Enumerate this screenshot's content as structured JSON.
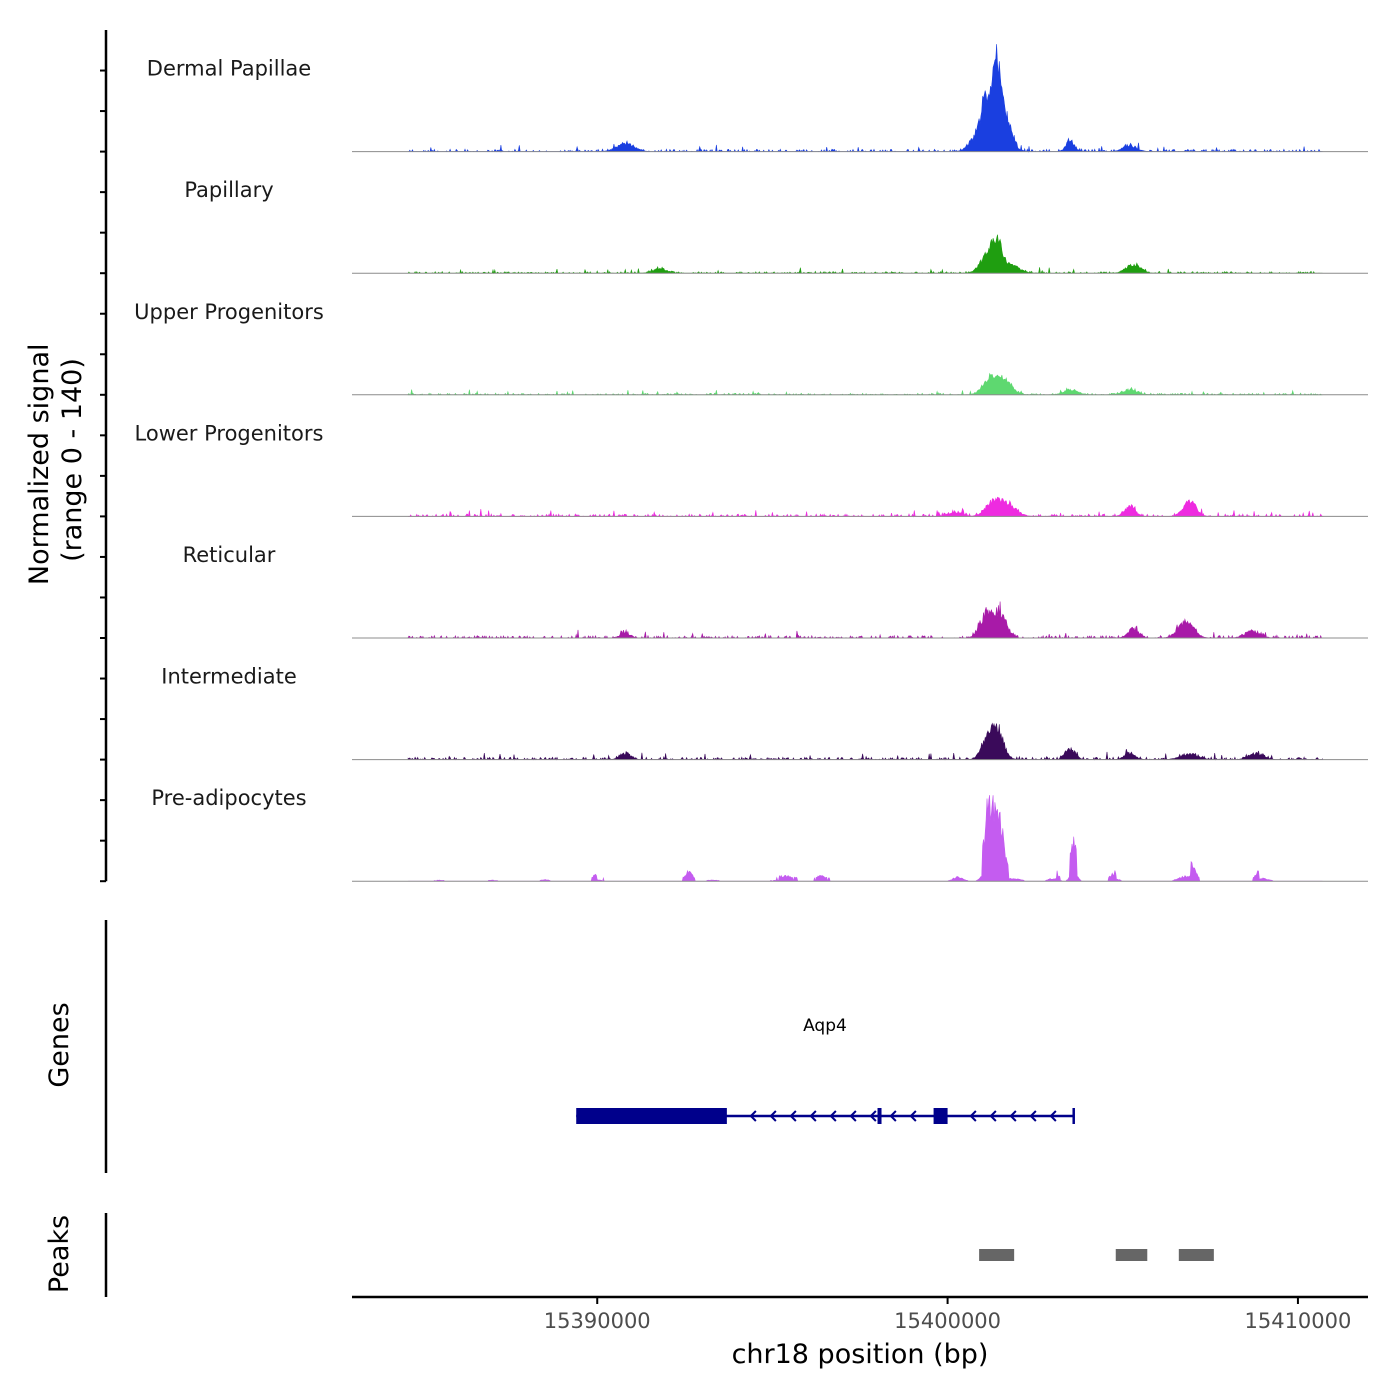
{
  "chart_data": {
    "type": "area",
    "chromosome": "chr18",
    "xlabel": "chr18 position (bp)",
    "ylabel_line1": "Normalized signal",
    "ylabel_line2": "(range 0 - 140)",
    "ylim": [
      0,
      140
    ],
    "xlim": [
      15383000,
      15412000
    ],
    "x_ticks": [
      {
        "value": 15390000,
        "label": "15390000"
      },
      {
        "value": 15400000,
        "label": "15400000"
      },
      {
        "value": 15410000,
        "label": "15410000"
      }
    ],
    "series": [
      {
        "name": "Dermal Papillae",
        "color": "#1a3fe0",
        "seed": 11,
        "noise_level": 3,
        "peaks": [
          {
            "x": 15390800,
            "height": 12,
            "width": 250
          },
          {
            "x": 15401100,
            "height": 75,
            "width": 150
          },
          {
            "x": 15401400,
            "height": 140,
            "width": 120
          },
          {
            "x": 15401700,
            "height": 52,
            "width": 150
          },
          {
            "x": 15400800,
            "height": 20,
            "width": 200
          },
          {
            "x": 15403500,
            "height": 17,
            "width": 120
          },
          {
            "x": 15405200,
            "height": 9,
            "width": 200
          }
        ]
      },
      {
        "name": "Papillary",
        "color": "#1f9e10",
        "seed": 23,
        "noise_level": 2,
        "peaks": [
          {
            "x": 15401100,
            "height": 22,
            "width": 200
          },
          {
            "x": 15401400,
            "height": 45,
            "width": 150
          },
          {
            "x": 15401800,
            "height": 12,
            "width": 250
          },
          {
            "x": 15405300,
            "height": 14,
            "width": 200
          },
          {
            "x": 15391800,
            "height": 7,
            "width": 200
          }
        ]
      },
      {
        "name": "Upper Progenitors",
        "color": "#5ed870",
        "seed": 37,
        "noise_level": 2,
        "peaks": [
          {
            "x": 15401200,
            "height": 24,
            "width": 200
          },
          {
            "x": 15401600,
            "height": 22,
            "width": 220
          },
          {
            "x": 15403500,
            "height": 8,
            "width": 200
          },
          {
            "x": 15405200,
            "height": 7,
            "width": 220
          }
        ]
      },
      {
        "name": "Lower Progenitors",
        "color": "#ee2be0",
        "seed": 41,
        "noise_level": 3,
        "peaks": [
          {
            "x": 15401300,
            "height": 20,
            "width": 220
          },
          {
            "x": 15401700,
            "height": 18,
            "width": 250
          },
          {
            "x": 15405200,
            "height": 16,
            "width": 150
          },
          {
            "x": 15406900,
            "height": 22,
            "width": 180
          },
          {
            "x": 15400200,
            "height": 6,
            "width": 200
          }
        ]
      },
      {
        "name": "Reticular",
        "color": "#a81aa8",
        "seed": 53,
        "noise_level": 3,
        "peaks": [
          {
            "x": 15401100,
            "height": 36,
            "width": 180
          },
          {
            "x": 15401500,
            "height": 38,
            "width": 180
          },
          {
            "x": 15405300,
            "height": 14,
            "width": 150
          },
          {
            "x": 15406800,
            "height": 24,
            "width": 220
          },
          {
            "x": 15408700,
            "height": 10,
            "width": 220
          },
          {
            "x": 15390800,
            "height": 7,
            "width": 150
          }
        ]
      },
      {
        "name": "Intermediate",
        "color": "#3a0a5a",
        "seed": 67,
        "noise_level": 3,
        "peaks": [
          {
            "x": 15401400,
            "height": 50,
            "width": 180
          },
          {
            "x": 15401100,
            "height": 25,
            "width": 160
          },
          {
            "x": 15403500,
            "height": 17,
            "width": 140
          },
          {
            "x": 15405200,
            "height": 10,
            "width": 150
          },
          {
            "x": 15406900,
            "height": 8,
            "width": 250
          },
          {
            "x": 15408800,
            "height": 10,
            "width": 200
          },
          {
            "x": 15390800,
            "height": 10,
            "width": 150
          }
        ]
      },
      {
        "name": "Pre-adipocytes",
        "color": "#c45cf0",
        "seed": 79,
        "noise_level": 0,
        "sparse": true,
        "peaks": [
          {
            "x": 15400300,
            "height": 32,
            "width": 140
          },
          {
            "x": 15401200,
            "height": 120,
            "width": 150
          },
          {
            "x": 15401500,
            "height": 80,
            "width": 120
          },
          {
            "x": 15401900,
            "height": 18,
            "width": 200
          },
          {
            "x": 15403600,
            "height": 60,
            "width": 100
          },
          {
            "x": 15403000,
            "height": 20,
            "width": 140
          },
          {
            "x": 15404800,
            "height": 14,
            "width": 140
          },
          {
            "x": 15406800,
            "height": 38,
            "width": 200
          },
          {
            "x": 15409000,
            "height": 22,
            "width": 160
          },
          {
            "x": 15385500,
            "height": 8,
            "width": 150
          },
          {
            "x": 15387000,
            "height": 8,
            "width": 150
          },
          {
            "x": 15388500,
            "height": 12,
            "width": 120
          },
          {
            "x": 15390000,
            "height": 12,
            "width": 120
          },
          {
            "x": 15392600,
            "height": 14,
            "width": 120
          },
          {
            "x": 15393300,
            "height": 8,
            "width": 200
          },
          {
            "x": 15395300,
            "height": 8,
            "width": 400
          },
          {
            "x": 15396400,
            "height": 8,
            "width": 200
          }
        ]
      }
    ],
    "genes_track": {
      "label": "Genes",
      "gene_name": "Aqp4",
      "strand": "-",
      "color": "#00008b",
      "start": 15389400,
      "end": 15403600,
      "exons": [
        {
          "start": 15389400,
          "end": 15393700
        },
        {
          "start": 15398000,
          "end": 15398100
        },
        {
          "start": 15399600,
          "end": 15400000
        }
      ]
    },
    "peaks_track": {
      "label": "Peaks",
      "color": "#666666",
      "regions": [
        {
          "start": 15400900,
          "end": 15401900
        },
        {
          "start": 15404800,
          "end": 15405700
        },
        {
          "start": 15406600,
          "end": 15407600
        }
      ]
    }
  }
}
